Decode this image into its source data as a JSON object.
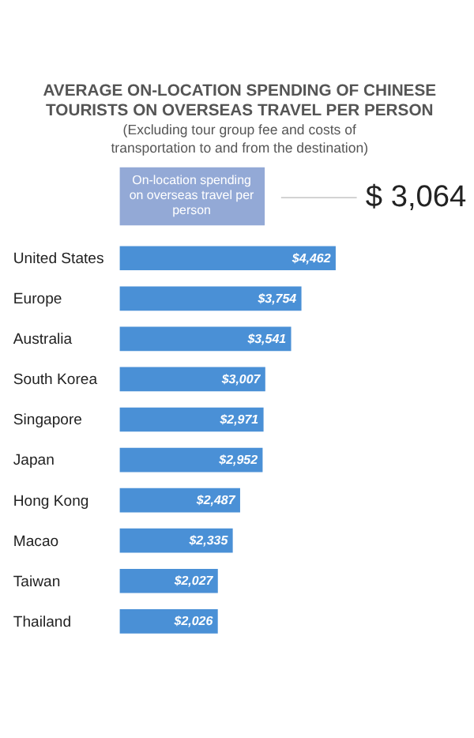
{
  "chart_data": {
    "type": "bar",
    "orientation": "horizontal",
    "title": "AVERAGE ON-LOCATION SPENDING OF CHINESE TOURISTS ON OVERSEAS TRAVEL PER PERSON",
    "subtitle": "(Excluding tour group fee and costs of transportation to and from the destination)",
    "annotations": [
      "On-location spending on overseas travel per person",
      "$ 3,064"
    ],
    "categories": [
      "United States",
      "Europe",
      "Australia",
      "South Korea",
      "Singapore",
      "Japan",
      "Hong Kong",
      "Macao",
      "Taiwan",
      "Thailand"
    ],
    "values": [
      4462,
      3754,
      3541,
      3007,
      2971,
      2952,
      2487,
      2335,
      2027,
      2026
    ],
    "value_labels": [
      "$4,462",
      "$3,754",
      "$3,541",
      "$3,007",
      "$2,971",
      "$2,952",
      "$2,487",
      "$2,335",
      "$2,027",
      "$2,026"
    ],
    "color": "#4a90d6"
  }
}
